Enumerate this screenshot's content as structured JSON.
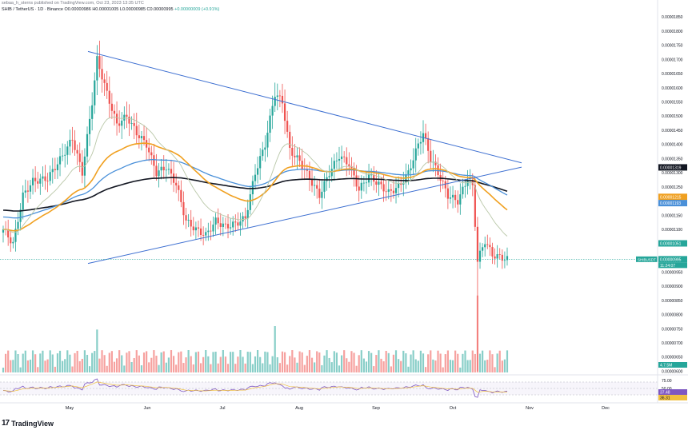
{
  "header": {
    "caption": "sebaa_h_sterns published on TradingView.com, Oct 23, 2023 13:35 UTC",
    "symbol": "SHIB / TetherUS · 1D · Binance",
    "ohlc": "O0.00000986 H0.00001005 L0.00000985 C0.00000995",
    "change": "+0.00000009 (+0.91%)"
  },
  "brand": {
    "logo": "17",
    "name": "TradingView"
  },
  "colors": {
    "up": "#26a69a",
    "down": "#ef5350",
    "ema50": "#f0a020",
    "ema100": "#4a90d9",
    "ema200": "#131722",
    "ema20": "#b9c7a8",
    "trendline": "#3d6fd1",
    "rsi": "#7e57c2"
  },
  "chart_data": {
    "type": "candlestick",
    "x_labels": [
      "May",
      "Jun",
      "Jul",
      "Aug",
      "Sep",
      "Oct",
      "Nov",
      "Dec"
    ],
    "y_ticks": [
      "0.00001850",
      "0.00001800",
      "0.00001750",
      "0.00001700",
      "0.00001650",
      "0.00001600",
      "0.00001550",
      "0.00001500",
      "0.00001450",
      "0.00001400",
      "0.00001350",
      "0.00001300",
      "0.00001250",
      "0.00001200",
      "0.00001150",
      "0.00001100",
      "0.00001050",
      "0.00001000",
      "0.00000950",
      "0.00000900",
      "0.00000850",
      "0.00000800",
      "0.00000750",
      "0.00000700",
      "0.00000650",
      "0.00000600"
    ],
    "ylim": [
      5.9e-06,
      1.87e-05
    ],
    "price_labels": [
      {
        "name": "ema200",
        "text": "0.00001319",
        "value": 1.319e-05,
        "bg": "#131722"
      },
      {
        "name": "ema50",
        "text": "0.00001215",
        "value": 1.215e-05,
        "bg": "#f0a020"
      },
      {
        "name": "ema100",
        "text": "0.00001193",
        "value": 1.193e-05,
        "bg": "#4a90d9"
      },
      {
        "name": "ema20",
        "text": "0.00001051",
        "value": 1.051e-05,
        "bg": "#26a69a"
      },
      {
        "name": "last",
        "text": "0.00000995",
        "value": 9.95e-06,
        "bg": "#26a69a"
      }
    ],
    "last_price": 9.95e-06,
    "countdown": "11:24:07",
    "symbol_tag": "SHIBUSDT",
    "volume_label": "4.7.5M",
    "rsi": {
      "ticks": [
        "75.00",
        "50.00",
        "25.00"
      ],
      "value_1": "37.48",
      "value_2": "36.31",
      "upper": 70,
      "lower": 30,
      "ylim": [
        10,
        90
      ]
    }
  }
}
